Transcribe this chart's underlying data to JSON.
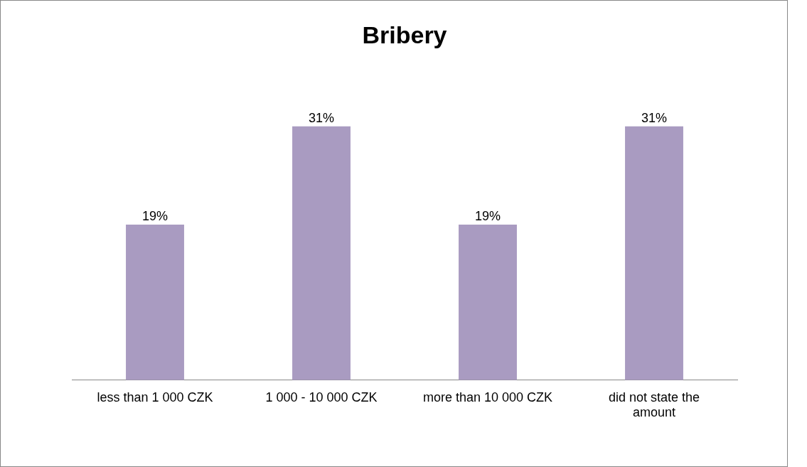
{
  "chart_data": {
    "type": "bar",
    "title": "Bribery",
    "categories": [
      "less than 1 000 CZK",
      "1 000 - 10 000 CZK",
      "more than 10 000 CZK",
      "did not state the amount"
    ],
    "values": [
      19,
      31,
      19,
      31
    ],
    "value_labels": [
      "19%",
      "31%",
      "19%",
      "31%"
    ],
    "color": "#a99bc1",
    "grid": false,
    "legend": false
  }
}
